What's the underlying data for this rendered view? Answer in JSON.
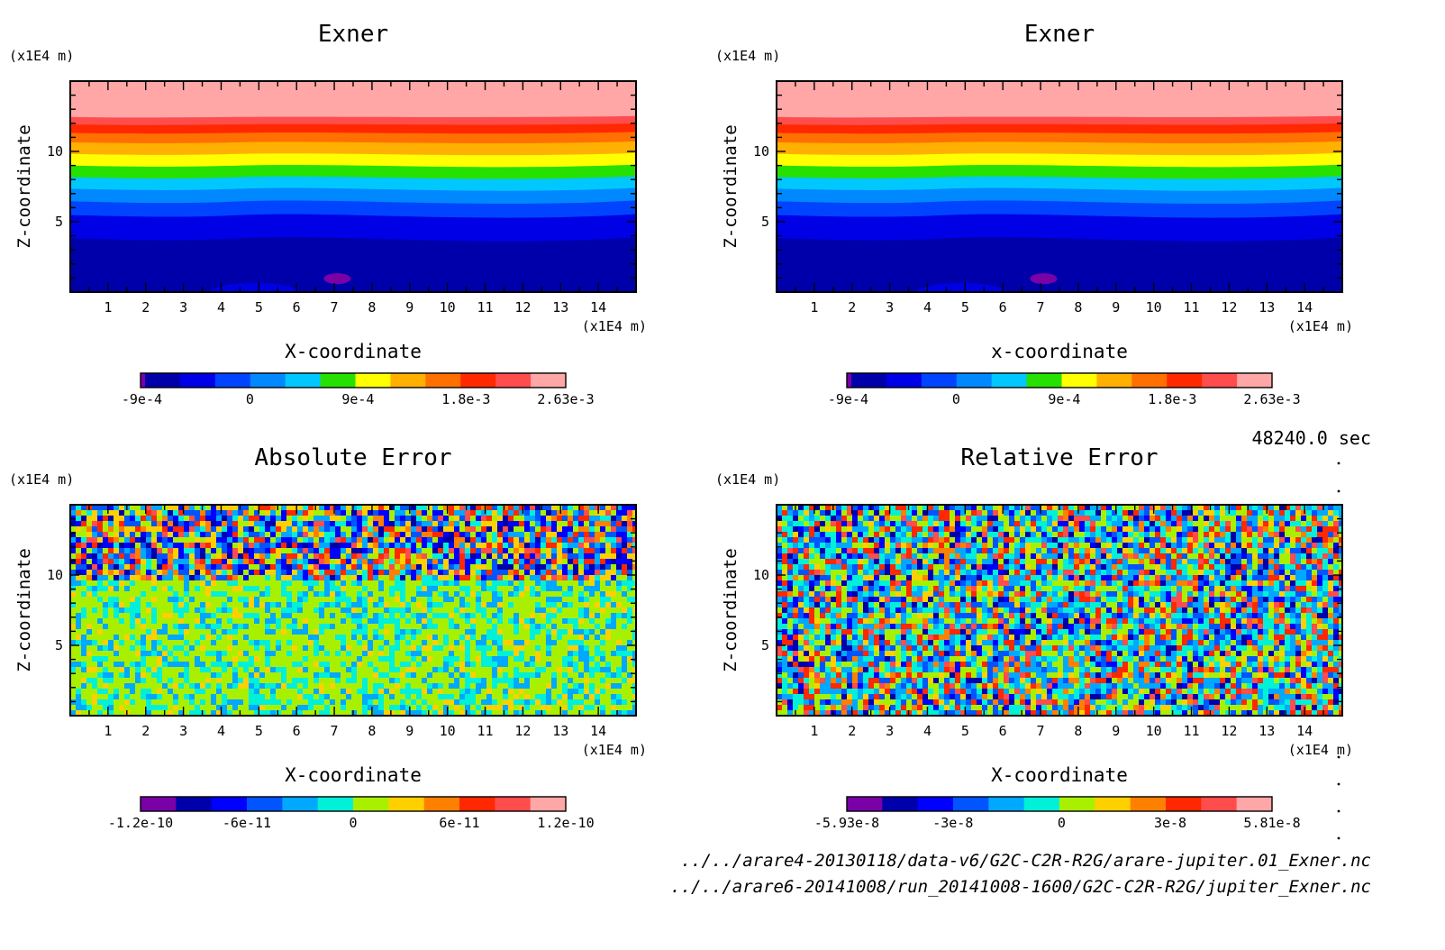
{
  "colors": {
    "exner": [
      "#7a00a8",
      "#0000aa",
      "#0000e6",
      "#0044ff",
      "#0088ff",
      "#00c8ff",
      "#26e000",
      "#ffff00",
      "#ffb000",
      "#ff7000",
      "#ff2800",
      "#ff4c4c",
      "#ffa6a6"
    ],
    "error": [
      "#7a00a8",
      "#0000aa",
      "#0000ff",
      "#0055ff",
      "#00a8ff",
      "#00f0d8",
      "#a8f000",
      "#ffd000",
      "#ff8000",
      "#ff2800",
      "#ff4c4c",
      "#ffa6a6"
    ]
  },
  "annotations": {
    "time": "48240.0 sec",
    "file_1": "../../arare4-20130118/data-v6/G2C-C2R-R2G/arare-jupiter.01_Exner.nc",
    "file_2": "../../arare6-20141008/run_20141008-1600/G2C-C2R-R2G/jupiter_Exner.nc"
  },
  "chart_data": [
    {
      "type": "heatmap",
      "title": "Exner",
      "xlabel": "X-coordinate",
      "ylabel": "Z-coordinate",
      "x_unit": "(x1E4 m)",
      "y_unit": "(x1E4 m)",
      "xlim": [
        0,
        15
      ],
      "ylim": [
        0,
        15
      ],
      "x_ticks": [
        1,
        2,
        3,
        4,
        5,
        6,
        7,
        8,
        9,
        10,
        11,
        12,
        13,
        14
      ],
      "y_ticks": [
        5,
        10
      ],
      "field": "layered",
      "colorbar": {
        "min": -0.000911,
        "max": 0.00263,
        "labels": [
          "-9e-4",
          "0",
          "9e-4",
          "1.8e-3",
          "2.63e-3"
        ],
        "label_values": [
          -0.0009,
          0,
          0.0009,
          0.0018,
          0.00263
        ]
      }
    },
    {
      "type": "heatmap",
      "title": "Exner",
      "xlabel": "x-coordinate",
      "ylabel": "Z-coordinate",
      "x_unit": "(x1E4 m)",
      "y_unit": "(x1E4 m)",
      "xlim": [
        0,
        15
      ],
      "ylim": [
        0,
        15
      ],
      "x_ticks": [
        1,
        2,
        3,
        4,
        5,
        6,
        7,
        8,
        9,
        10,
        11,
        12,
        13,
        14
      ],
      "y_ticks": [
        5,
        10
      ],
      "field": "layered",
      "colorbar": {
        "min": -0.000911,
        "max": 0.00263,
        "labels": [
          "-9e-4",
          "0",
          "9e-4",
          "1.8e-3",
          "2.63e-3"
        ],
        "label_values": [
          -0.0009,
          0,
          0.0009,
          0.0018,
          0.00263
        ]
      }
    },
    {
      "type": "heatmap",
      "title": "Absolute Error",
      "xlabel": "X-coordinate",
      "ylabel": "Z-coordinate",
      "x_unit": "(x1E4 m)",
      "y_unit": "(x1E4 m)",
      "xlim": [
        0,
        15
      ],
      "ylim": [
        0,
        15
      ],
      "x_ticks": [
        1,
        2,
        3,
        4,
        5,
        6,
        7,
        8,
        9,
        10,
        11,
        12,
        13,
        14
      ],
      "y_ticks": [
        5,
        10
      ],
      "field": "noise-abs",
      "colorbar": {
        "min": -1.2e-10,
        "max": 1.2e-10,
        "labels": [
          "-1.2e-10",
          "-6e-11",
          "0",
          "6e-11",
          "1.2e-10"
        ],
        "label_values": [
          -1.2e-10,
          -6e-11,
          0,
          6e-11,
          1.2e-10
        ]
      }
    },
    {
      "type": "heatmap",
      "title": "Relative Error",
      "xlabel": "X-coordinate",
      "ylabel": "Z-coordinate",
      "x_unit": "(x1E4 m)",
      "y_unit": "(x1E4 m)",
      "xlim": [
        0,
        15
      ],
      "ylim": [
        0,
        15
      ],
      "x_ticks": [
        1,
        2,
        3,
        4,
        5,
        6,
        7,
        8,
        9,
        10,
        11,
        12,
        13,
        14
      ],
      "y_ticks": [
        5,
        10
      ],
      "field": "noise-rel",
      "colorbar": {
        "min": -5.93e-08,
        "max": 5.81e-08,
        "labels": [
          "-5.93e-8",
          "-3e-8",
          "0",
          "3e-8",
          "5.81e-8"
        ],
        "label_values": [
          -5.93e-08,
          -3e-08,
          0,
          3e-08,
          5.81e-08
        ]
      }
    }
  ]
}
